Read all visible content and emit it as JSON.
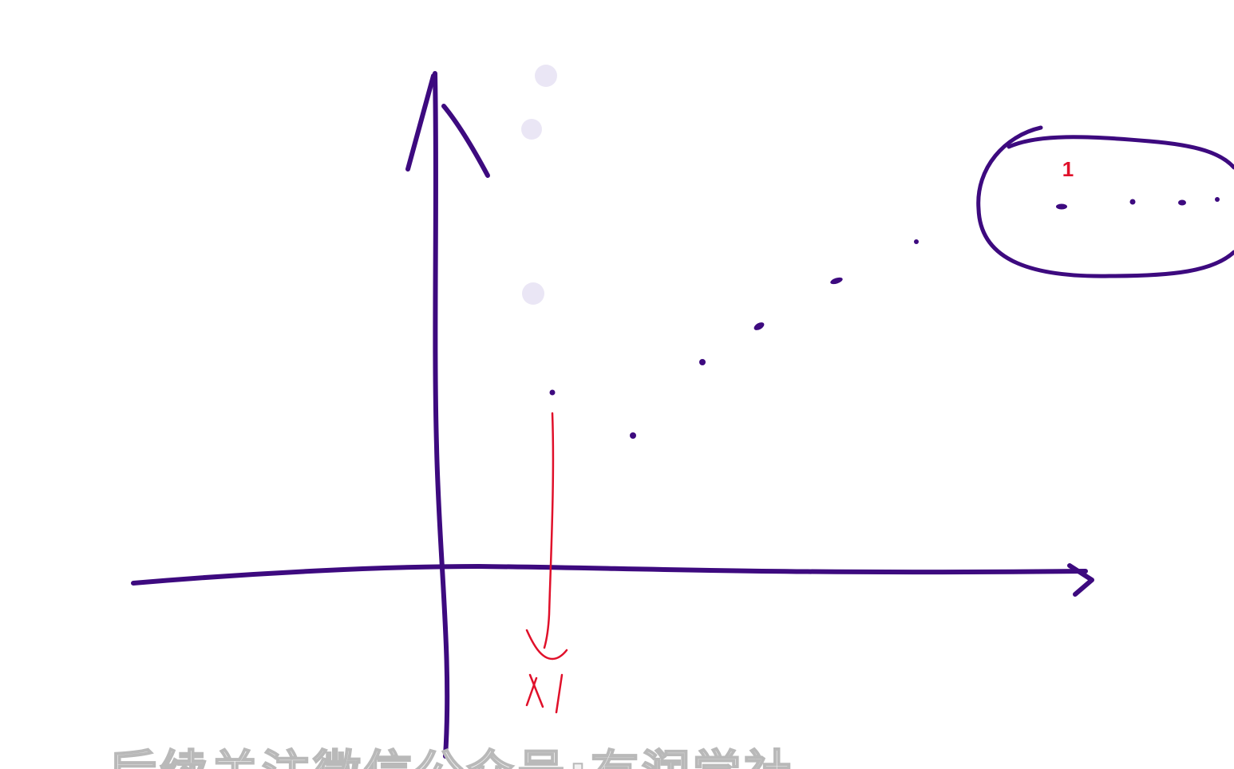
{
  "annotation": {
    "point_label": "1"
  },
  "caption": {
    "watermark_text": "后续关注微信公众号:有润学社"
  },
  "colors": {
    "ink": "#3d0a7f",
    "annotation": "#e0102a"
  }
}
